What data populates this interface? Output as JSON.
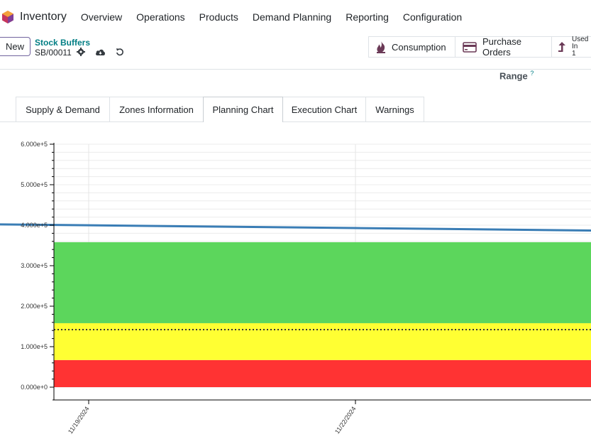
{
  "app": {
    "name": "Inventory",
    "menu": [
      "Overview",
      "Operations",
      "Products",
      "Demand Planning",
      "Reporting",
      "Configuration"
    ]
  },
  "control_panel": {
    "new_label": "New",
    "breadcrumb_parent": "Stock Buffers",
    "breadcrumb_current": "SB/00011"
  },
  "smart_buttons": {
    "consumption": "Consumption",
    "purchase_orders": "Purchase Orders",
    "used_in_label": "Used In",
    "used_in_count": "1"
  },
  "form": {
    "range_label": "Range",
    "range_help": "?"
  },
  "tabs": [
    {
      "label": "Supply & Demand",
      "active": false
    },
    {
      "label": "Zones Information",
      "active": false
    },
    {
      "label": "Planning Chart",
      "active": true
    },
    {
      "label": "Execution Chart",
      "active": false
    },
    {
      "label": "Warnings",
      "active": false
    }
  ],
  "colors": {
    "accent": "#71639e",
    "teal": "#017e84",
    "zone_green": "#5cd65c",
    "zone_yellow": "#ffff33",
    "zone_red": "#ff3333",
    "line": "#3a7db5"
  },
  "chart_data": {
    "type": "area",
    "x_ticks": [
      "11/19/2024",
      "11/22/2024"
    ],
    "y_ticks": [
      "0.000e+0",
      "1.000e+5",
      "2.000e+5",
      "3.000e+5",
      "4.000e+5",
      "5.000e+5",
      "6.000e+5"
    ],
    "ylim": [
      0,
      600000
    ],
    "grid": true,
    "zones": [
      {
        "color": "red",
        "from": 0,
        "to": 67000
      },
      {
        "color": "yellow",
        "from": 67000,
        "to": 158000
      },
      {
        "color": "green",
        "from": 158000,
        "to": 358000
      }
    ],
    "dotted_line": {
      "y": 142000
    },
    "series": [
      {
        "x": [
          "11/18/2024",
          "11/22/2024",
          "11/25/2024"
        ],
        "values": [
          402000,
          393000,
          386000
        ]
      }
    ]
  }
}
